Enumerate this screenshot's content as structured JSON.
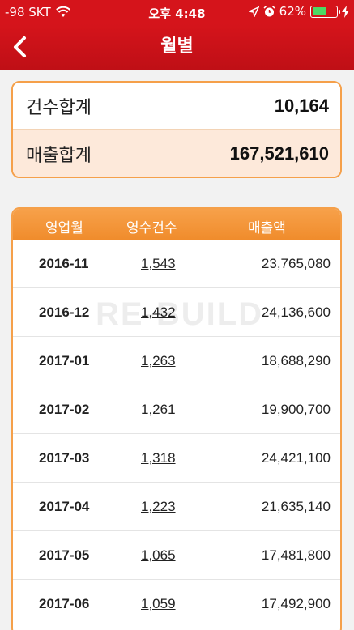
{
  "status_bar": {
    "carrier": "-98 SKT",
    "time": "오후 4:48",
    "battery": "62%",
    "battery_level": 0.62
  },
  "nav": {
    "title": "월별"
  },
  "summary": {
    "count_label": "건수합계",
    "count_value": "10,164",
    "sales_label": "매출합계",
    "sales_value": "167,521,610"
  },
  "table": {
    "headers": [
      "영업월",
      "영수건수",
      "매출액"
    ],
    "rows": [
      {
        "month": "2016-11",
        "count": "1,543",
        "sales": "23,765,080"
      },
      {
        "month": "2016-12",
        "count": "1,432",
        "sales": "24,136,600"
      },
      {
        "month": "2017-01",
        "count": "1,263",
        "sales": "18,688,290"
      },
      {
        "month": "2017-02",
        "count": "1,261",
        "sales": "19,900,700"
      },
      {
        "month": "2017-03",
        "count": "1,318",
        "sales": "24,421,100"
      },
      {
        "month": "2017-04",
        "count": "1,223",
        "sales": "21,635,140"
      },
      {
        "month": "2017-05",
        "count": "1,065",
        "sales": "17,481,800"
      },
      {
        "month": "2017-06",
        "count": "1,059",
        "sales": "17,492,900"
      }
    ]
  },
  "watermark": "RE-BUILD",
  "colors": {
    "header_red": "#d5141b",
    "accent_orange": "#f5a04a"
  }
}
